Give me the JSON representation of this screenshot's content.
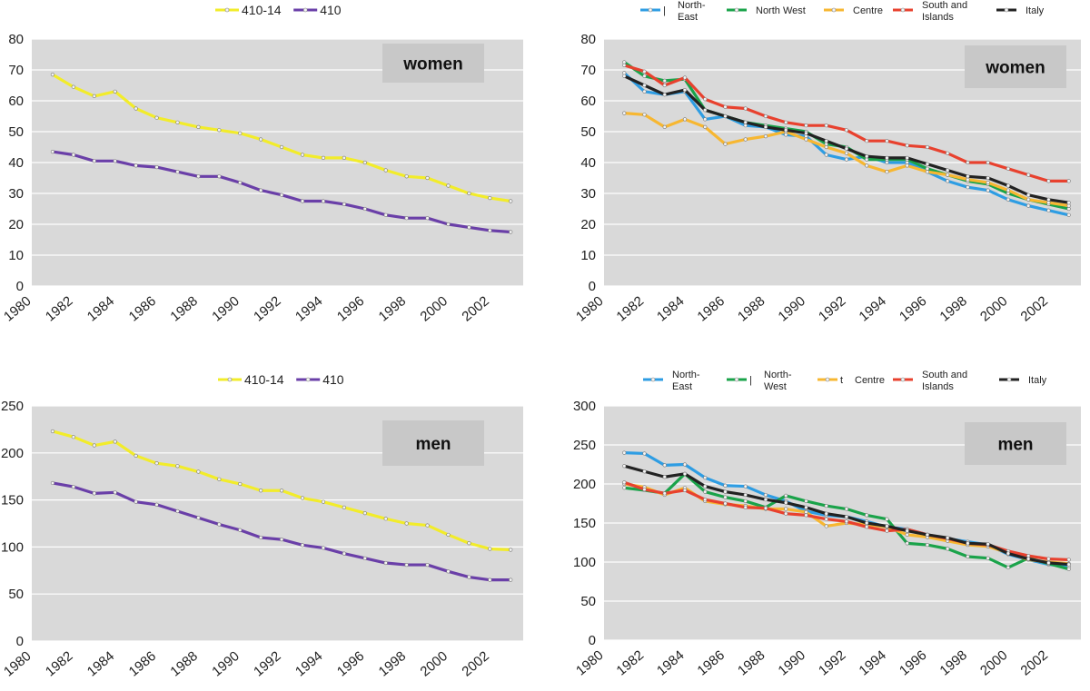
{
  "chart_data": [
    {
      "type": "line",
      "panel_label": "women",
      "ylim": [
        0,
        80
      ],
      "yticks": [
        0,
        10,
        20,
        30,
        40,
        50,
        60,
        70,
        80
      ],
      "xticks": [
        1980,
        1982,
        1984,
        1986,
        1988,
        1990,
        1992,
        1994,
        1996,
        1998,
        2000,
        2002
      ],
      "grid": true,
      "legend_position": "top-center",
      "x": [
        1981,
        1982,
        1983,
        1984,
        1985,
        1986,
        1987,
        1988,
        1989,
        1990,
        1991,
        1992,
        1993,
        1994,
        1995,
        1996,
        1997,
        1998,
        1999,
        2000,
        2001,
        2002,
        2003
      ],
      "series": [
        {
          "name": "410-14",
          "color": "#f2ec2a",
          "values": [
            68.5,
            64.5,
            61.5,
            63,
            57.5,
            54.5,
            53,
            51.5,
            50.5,
            49.5,
            47.5,
            45,
            42.5,
            41.5,
            41.5,
            40,
            37.5,
            35.5,
            35,
            32.5,
            30,
            28.5,
            27.5
          ]
        },
        {
          "name": "410",
          "color": "#6a3fa8",
          "values": [
            43.5,
            42.5,
            40.5,
            40.5,
            39,
            38.5,
            37,
            35.5,
            35.5,
            33.5,
            31,
            29.5,
            27.5,
            27.5,
            26.5,
            25,
            23,
            22,
            22,
            20,
            19,
            18,
            17.5
          ]
        }
      ]
    },
    {
      "type": "line",
      "panel_label": "women",
      "ylim": [
        0,
        80
      ],
      "yticks": [
        0,
        10,
        20,
        30,
        40,
        50,
        60,
        70,
        80
      ],
      "xticks": [
        1980,
        1982,
        1984,
        1986,
        1988,
        1990,
        1992,
        1994,
        1996,
        1998,
        2000,
        2002
      ],
      "grid": true,
      "legend_position": "top",
      "x": [
        1981,
        1982,
        1983,
        1984,
        1985,
        1986,
        1987,
        1988,
        1989,
        1990,
        1991,
        1992,
        1993,
        1994,
        1995,
        1996,
        1997,
        1998,
        1999,
        2000,
        2001,
        2002,
        2003
      ],
      "series": [
        {
          "name": "North-East",
          "color": "#2e9de3",
          "values": [
            69,
            63,
            62,
            63,
            54,
            55,
            52,
            51.5,
            49,
            48.5,
            42.5,
            41,
            42,
            40,
            40,
            37,
            34,
            32,
            31,
            28,
            26,
            24.5,
            23
          ]
        },
        {
          "name": "North West",
          "color": "#1aa34a",
          "values": [
            72.5,
            68,
            66.5,
            67,
            57,
            55,
            53,
            52,
            51,
            50,
            46,
            45,
            41,
            41,
            41,
            38,
            36,
            34,
            33,
            30,
            28,
            26.5,
            25
          ]
        },
        {
          "name": "Centre",
          "color": "#f7b731",
          "values": [
            56,
            55.5,
            51.5,
            54,
            51.5,
            46,
            47.5,
            48.5,
            50,
            47.5,
            45,
            43,
            39,
            37,
            39,
            37,
            36,
            34.5,
            33.5,
            31,
            28,
            27,
            26
          ]
        },
        {
          "name": "South and Islands",
          "color": "#e8412e",
          "values": [
            71.5,
            69.5,
            65,
            67.5,
            60.5,
            58,
            57.5,
            55,
            53,
            52,
            52,
            50.5,
            47,
            47,
            45.5,
            45,
            43,
            40,
            40,
            38,
            36,
            34,
            34
          ]
        },
        {
          "name": "Italy",
          "color": "#222222",
          "values": [
            68,
            65,
            62,
            63.5,
            57,
            55,
            53,
            51.5,
            50.5,
            49.5,
            47,
            44.5,
            42,
            41.5,
            41.5,
            39.5,
            37.5,
            35.5,
            35,
            32.5,
            29.5,
            28,
            27
          ]
        }
      ],
      "legend_text": {
        "North-East": [
          "North-",
          "East"
        ],
        "North West": [
          "North West"
        ],
        "Centre": [
          "Centre"
        ],
        "South and Islands": [
          "South and",
          "Islands"
        ],
        "Italy": [
          "Italy"
        ]
      },
      "legend_prefix": [
        "|",
        "",
        "",
        "",
        ""
      ]
    },
    {
      "type": "line",
      "panel_label": "men",
      "ylim": [
        0,
        250
      ],
      "yticks": [
        0,
        50,
        100,
        150,
        200,
        250
      ],
      "xticks": [
        1980,
        1982,
        1984,
        1986,
        1988,
        1990,
        1992,
        1994,
        1996,
        1998,
        2000,
        2002
      ],
      "grid": true,
      "legend_position": "top-center",
      "x": [
        1981,
        1982,
        1983,
        1984,
        1985,
        1986,
        1987,
        1988,
        1989,
        1990,
        1991,
        1992,
        1993,
        1994,
        1995,
        1996,
        1997,
        1998,
        1999,
        2000,
        2001,
        2002,
        2003
      ],
      "series": [
        {
          "name": "410-14",
          "color": "#f2ec2a",
          "values": [
            223,
            217,
            208,
            212,
            197,
            189,
            186,
            180,
            172,
            167,
            160,
            160,
            152,
            148,
            142,
            136,
            130,
            125,
            123,
            113,
            104,
            98,
            97
          ]
        },
        {
          "name": "410",
          "color": "#6a3fa8",
          "values": [
            168,
            164,
            157,
            158,
            148,
            145,
            138,
            131,
            124,
            118,
            110,
            108,
            102,
            99,
            93,
            88,
            83,
            81,
            81,
            74,
            68,
            65,
            65
          ]
        }
      ]
    },
    {
      "type": "line",
      "panel_label": "men",
      "ylim": [
        0,
        300
      ],
      "yticks": [
        0,
        50,
        100,
        150,
        200,
        250,
        300
      ],
      "xticks": [
        1980,
        1982,
        1984,
        1986,
        1988,
        1990,
        1992,
        1994,
        1996,
        1998,
        2000,
        2002
      ],
      "grid": true,
      "legend_position": "top",
      "x": [
        1981,
        1982,
        1983,
        1984,
        1985,
        1986,
        1987,
        1988,
        1989,
        1990,
        1991,
        1992,
        1993,
        1994,
        1995,
        1996,
        1997,
        1998,
        1999,
        2000,
        2001,
        2002,
        2003
      ],
      "series": [
        {
          "name": "North-East",
          "color": "#2e9de3",
          "values": [
            240,
            239,
            224,
            225,
            208,
            198,
            197,
            186,
            178,
            165,
            160,
            158,
            152,
            145,
            142,
            135,
            130,
            126,
            122,
            110,
            103,
            97,
            94
          ]
        },
        {
          "name": "North-West",
          "color": "#1aa34a",
          "values": [
            195,
            192,
            188,
            213,
            190,
            183,
            178,
            170,
            185,
            178,
            172,
            168,
            160,
            155,
            124,
            122,
            117,
            107,
            105,
            93,
            105,
            98,
            91
          ]
        },
        {
          "name": "Centre",
          "color": "#f7b731",
          "values": [
            200,
            196,
            186,
            195,
            178,
            174,
            172,
            168,
            168,
            164,
            146,
            150,
            148,
            145,
            135,
            132,
            127,
            122,
            120,
            112,
            103,
            100,
            98
          ]
        },
        {
          "name": "South and Islands",
          "color": "#e8412e",
          "values": [
            202,
            193,
            188,
            192,
            180,
            175,
            170,
            169,
            162,
            160,
            155,
            152,
            145,
            140,
            142,
            135,
            130,
            124,
            122,
            114,
            108,
            104,
            103
          ]
        },
        {
          "name": "Italy",
          "color": "#222222",
          "values": [
            223,
            216,
            209,
            213,
            197,
            190,
            186,
            180,
            176,
            170,
            162,
            158,
            150,
            146,
            140,
            135,
            131,
            124,
            123,
            111,
            104,
            99,
            97
          ]
        }
      ],
      "legend_text": {
        "North-East": [
          "North-",
          "East"
        ],
        "North-West": [
          "North-",
          "West"
        ],
        "Centre": [
          "Centre"
        ],
        "South and Islands": [
          "South and",
          "Islands"
        ],
        "Italy": [
          "Italy"
        ]
      },
      "legend_prefix": [
        "",
        "|",
        "t",
        "",
        ""
      ]
    }
  ]
}
